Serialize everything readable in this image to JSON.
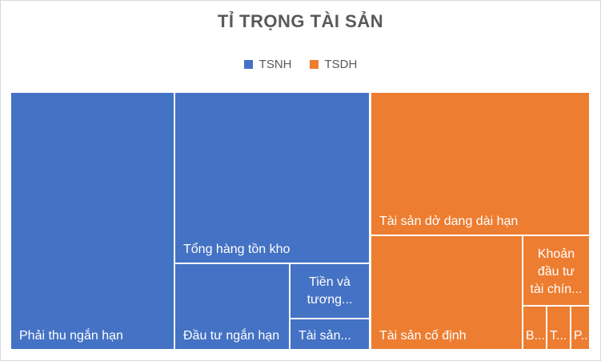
{
  "chart_data": {
    "type": "treemap",
    "title": "TỈ TRỌNG TÀI SẢN",
    "legend": [
      {
        "name": "TSNH",
        "color": "#4472C4"
      },
      {
        "name": "TSDH",
        "color": "#ED7D31"
      }
    ],
    "legend_position": "top",
    "cells": [
      {
        "group": "TSNH",
        "label": "Phải thu ngắn hạn",
        "lines": [
          "Phải thu ngắn hạn"
        ]
      },
      {
        "group": "TSNH",
        "label": "Tổng hàng tồn kho",
        "lines": [
          "Tổng hàng tồn kho"
        ]
      },
      {
        "group": "TSNH",
        "label": "Đầu tư ngắn hạn",
        "lines": [
          "Đầu tư ngắn hạn"
        ]
      },
      {
        "group": "TSNH",
        "label": "Tiền và tương...",
        "lines": [
          "Tiền và",
          "tương..."
        ]
      },
      {
        "group": "TSNH",
        "label": "Tài sản...",
        "lines": [
          "Tài sản..."
        ]
      },
      {
        "group": "TSDH",
        "label": "Tài sản dở dang dài hạn",
        "lines": [
          "Tài sản dở dang dài hạn"
        ]
      },
      {
        "group": "TSDH",
        "label": "Tài sản cố định",
        "lines": [
          "Tài sản cố định"
        ]
      },
      {
        "group": "TSDH",
        "label": "Khoản đầu tư tài chín...",
        "lines": [
          "Khoản",
          "đầu tư",
          "tài chín..."
        ]
      },
      {
        "group": "TSDH",
        "label": "B...",
        "lines": [
          "B..."
        ]
      },
      {
        "group": "TSDH",
        "label": "T...",
        "lines": [
          "T..."
        ]
      },
      {
        "group": "TSDH",
        "label": "P...",
        "lines": [
          "P..."
        ]
      }
    ]
  }
}
